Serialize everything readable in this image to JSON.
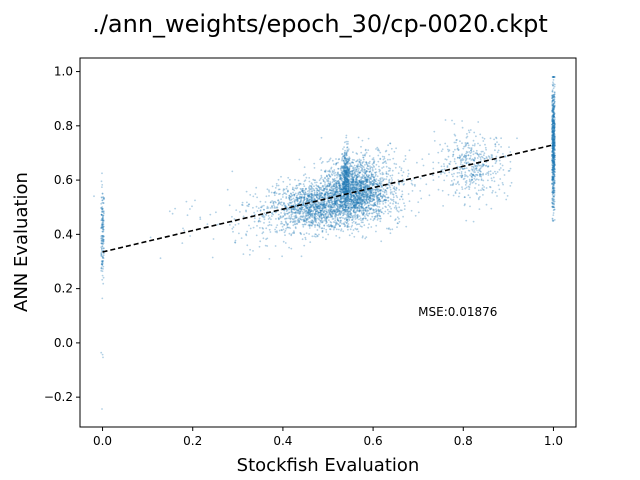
{
  "chart_data": {
    "type": "scatter",
    "title": "./ann_weights/epoch_30/cp-0020.ckpt",
    "xlabel": "Stockfish Evaluation",
    "ylabel": "ANN Evaluation",
    "xlim": [
      -0.05,
      1.05
    ],
    "ylim": [
      -0.31,
      1.05
    ],
    "x_ticks": [
      0.0,
      0.2,
      0.4,
      0.6,
      0.8,
      1.0
    ],
    "x_tick_labels": [
      "0.0",
      "0.2",
      "0.4",
      "0.6",
      "0.8",
      "1.0"
    ],
    "y_ticks": [
      -0.2,
      0.0,
      0.2,
      0.4,
      0.6,
      0.8,
      1.0
    ],
    "y_tick_labels": [
      "−0.2",
      "0.0",
      "0.2",
      "0.4",
      "0.6",
      "0.8",
      "1.0"
    ],
    "grid": false,
    "annotation": {
      "text": "MSE:0.01876",
      "x": 0.7,
      "y": 0.1
    },
    "scatter_color": "#1f77b4",
    "fit_line": {
      "x": [
        0.0,
        1.0
      ],
      "y": [
        0.335,
        0.73
      ],
      "style": "dashed",
      "color": "#000000"
    },
    "clusters": [
      {
        "cx": 0.0,
        "cy": 0.4,
        "sx": 0.002,
        "sy": 0.09,
        "n": 160
      },
      {
        "cx": 0.0,
        "cy": -0.04,
        "sx": 0.002,
        "sy": 0.01,
        "n": 3
      },
      {
        "cx": 0.0,
        "cy": -0.24,
        "sx": 0.001,
        "sy": 0.003,
        "n": 1
      },
      {
        "cx": 0.19,
        "cy": 0.46,
        "sx": 0.06,
        "sy": 0.07,
        "n": 25
      },
      {
        "cx": 0.47,
        "cy": 0.5,
        "sx": 0.05,
        "sy": 0.045,
        "n": 1400
      },
      {
        "cx": 0.555,
        "cy": 0.56,
        "sx": 0.035,
        "sy": 0.055,
        "n": 1600
      },
      {
        "cx": 0.54,
        "cy": 0.6,
        "sx": 0.004,
        "sy": 0.06,
        "n": 350
      },
      {
        "cx": 0.61,
        "cy": 0.58,
        "sx": 0.04,
        "sy": 0.07,
        "n": 450
      },
      {
        "cx": 0.35,
        "cy": 0.45,
        "sx": 0.05,
        "sy": 0.06,
        "n": 120
      },
      {
        "cx": 0.82,
        "cy": 0.65,
        "sx": 0.04,
        "sy": 0.06,
        "n": 450
      },
      {
        "cx": 1.0,
        "cy": 0.72,
        "sx": 0.002,
        "sy": 0.11,
        "n": 700
      }
    ]
  }
}
